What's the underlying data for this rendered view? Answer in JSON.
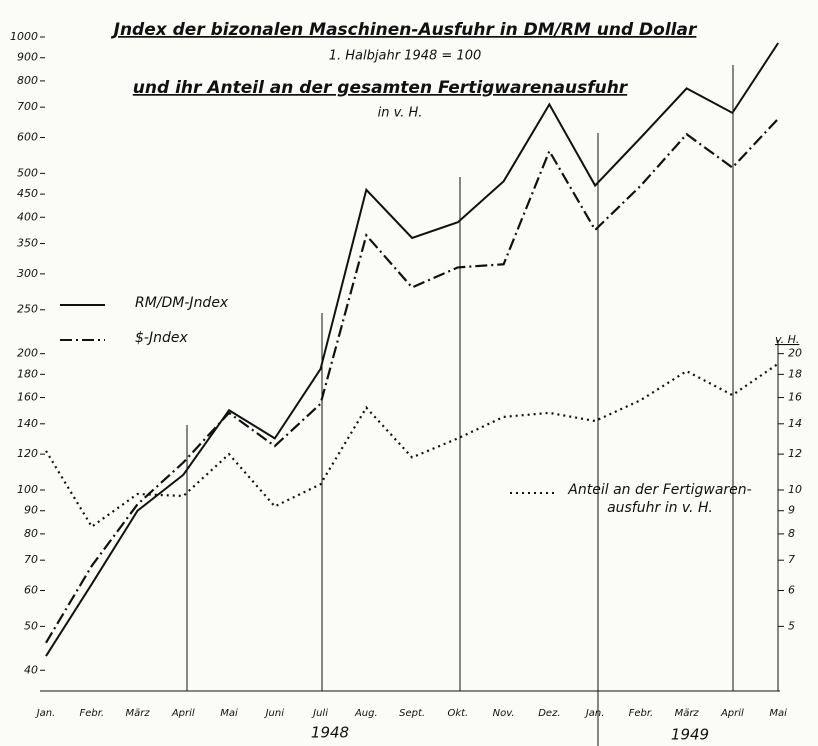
{
  "chart_data": {
    "type": "line",
    "title": "Jndex der bizonalen Maschinen-Ausfuhr in DM/RM und Dollar",
    "subtitle": "1. Halbjahr 1948 = 100",
    "title2": "und ihr Anteil an der gesamten Fertigwarenausfuhr",
    "subtitle2": "in v. H.",
    "y2_label": "v. H.",
    "categories": [
      "Jan.",
      "Febr.",
      "März",
      "April",
      "Mai",
      "Juni",
      "Juli",
      "Aug.",
      "Sept.",
      "Okt.",
      "Nov.",
      "Dez.",
      "Jan.",
      "Febr.",
      "März",
      "April",
      "Mai"
    ],
    "year_labels": [
      "1948",
      "1949"
    ],
    "series": [
      {
        "name": "RM/DM-Jndex",
        "color": "#111111",
        "style": "solid",
        "values": [
          43,
          62,
          90,
          108,
          150,
          130,
          185,
          460,
          360,
          390,
          480,
          710,
          470,
          600,
          770,
          680,
          970
        ]
      },
      {
        "name": "$-Jndex",
        "color": "#111111",
        "style": "dashdot",
        "values": [
          46,
          68,
          93,
          115,
          148,
          125,
          155,
          365,
          280,
          310,
          315,
          560,
          375,
          470,
          610,
          515,
          660
        ]
      },
      {
        "name": "Anteil an der Fertigwaren-\nausfuhr in v. H.",
        "color": "#111111",
        "style": "dotted",
        "axis": "y2",
        "values": [
          12.2,
          8.3,
          9.8,
          9.7,
          12,
          9.2,
          10.3,
          15.2,
          11.8,
          13,
          14.5,
          14.8,
          14.2,
          15.8,
          18.3,
          16.2,
          19
        ]
      }
    ],
    "log_scale": true,
    "ylim": [
      36,
      1000
    ],
    "yticks": [
      40,
      50,
      60,
      70,
      80,
      90,
      100,
      120,
      140,
      160,
      180,
      200,
      250,
      300,
      350,
      400,
      450,
      500,
      600,
      700,
      800,
      900,
      1000
    ],
    "y2lim": [
      3.6,
      100
    ],
    "y2ticks": [
      5,
      6,
      7,
      8,
      9,
      10,
      12,
      14,
      16,
      18,
      20
    ],
    "grid": false
  }
}
